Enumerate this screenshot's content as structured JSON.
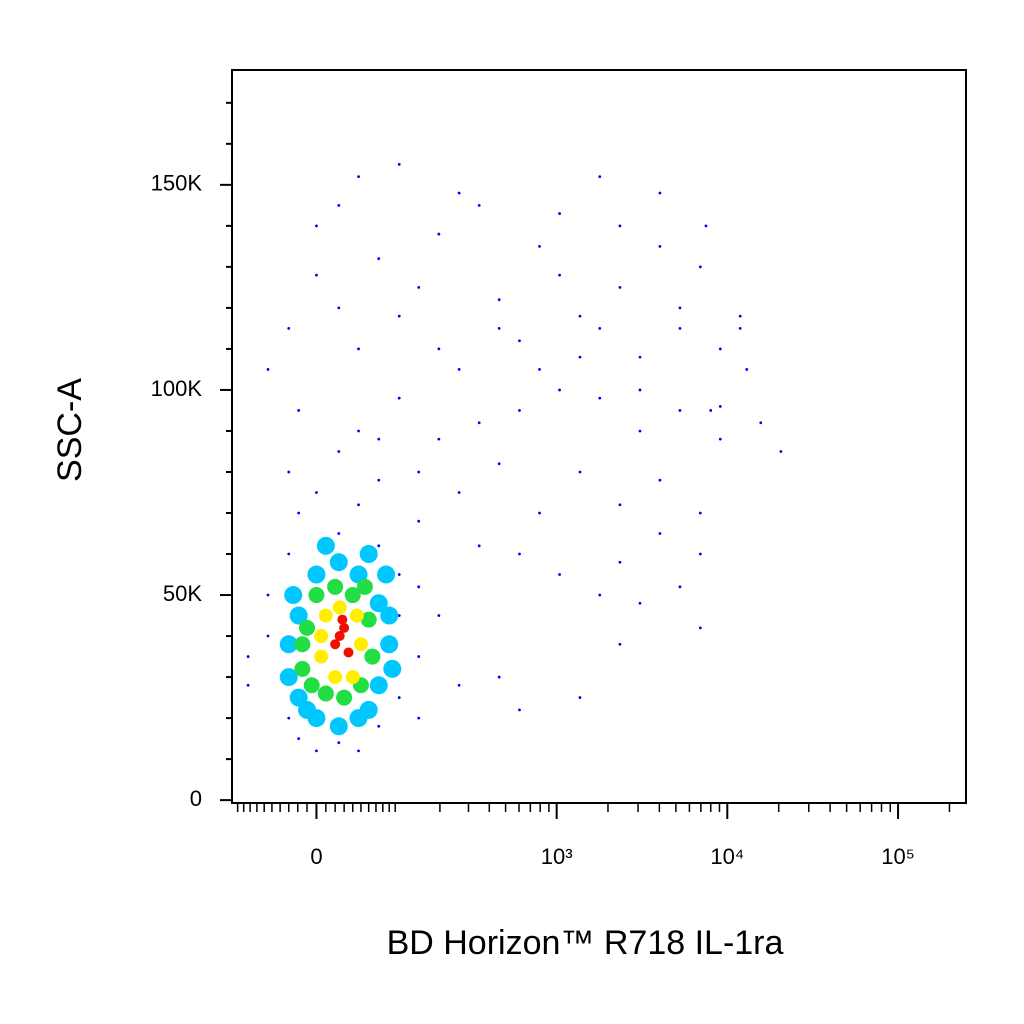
{
  "chart_data": {
    "type": "scatter",
    "x_label": "BD Horizon™ R718 IL-1ra",
    "y_label": "SSC-A",
    "xscale": "biexponential",
    "xlim": [
      -110,
      250000
    ],
    "ylim": [
      -700,
      178000
    ],
    "xticks": [
      0,
      {
        "value": 1000,
        "label": "10³"
      },
      {
        "value": 10000,
        "label": "10⁴"
      },
      {
        "value": 100000,
        "label": "10⁵"
      }
    ],
    "xminorticks": [
      -100,
      -90,
      -80,
      -70,
      -60,
      -50,
      -40,
      -30,
      -20,
      -10,
      10,
      20,
      30,
      40,
      50,
      60,
      70,
      80,
      90,
      100,
      200,
      300,
      400,
      500,
      600,
      700,
      800,
      900,
      2000,
      3000,
      4000,
      5000,
      6000,
      7000,
      8000,
      9000,
      20000,
      30000,
      40000,
      50000,
      60000,
      70000,
      80000,
      90000,
      200000
    ],
    "yticks": [
      0,
      {
        "value": 50000,
        "label": "50K"
      },
      {
        "value": 100000,
        "label": "100K"
      },
      {
        "value": 150000,
        "label": "150K"
      }
    ],
    "yminorticks": [
      10000,
      20000,
      30000,
      40000,
      60000,
      70000,
      80000,
      90000,
      110000,
      120000,
      130000,
      140000,
      160000,
      170000
    ],
    "series": [
      {
        "color": "#0000ff",
        "x": [
          -19,
          0,
          24,
          47,
          74,
          107,
          146,
          197,
          263,
          348,
          458,
          604,
          793,
          1040,
          1370,
          1790,
          2350,
          3080,
          4030,
          5280,
          6950,
          9100,
          11900,
          15700,
          20600,
          47,
          107,
          197,
          348,
          604,
          1040,
          1790,
          3080,
          5280,
          9100,
          13000,
          74,
          146,
          263,
          458,
          793,
          1370,
          2350,
          4030,
          6950,
          146,
          348,
          604,
          1040,
          1790,
          3080,
          5280,
          6950,
          2350,
          1370,
          458,
          604,
          263,
          197,
          146,
          24,
          -30,
          -55,
          0,
          47,
          107,
          263,
          1040,
          2350,
          4030,
          7500,
          11900,
          3080,
          1370,
          458,
          197,
          793,
          1790,
          5280,
          8000,
          9100,
          4030,
          6950,
          2350,
          -55,
          -83,
          -30,
          -19,
          0,
          24,
          47,
          74,
          107,
          146,
          107,
          74,
          24,
          -30,
          -55,
          -19,
          47,
          -83,
          107,
          146,
          0,
          24,
          -30,
          74
        ],
        "values": [
          95000,
          128000,
          120000,
          110000,
          132000,
          118000,
          125000,
          138000,
          105000,
          145000,
          122000,
          112000,
          135000,
          128000,
          118000,
          152000,
          125000,
          108000,
          148000,
          115000,
          130000,
          110000,
          118000,
          92000,
          85000,
          90000,
          98000,
          88000,
          92000,
          95000,
          100000,
          98000,
          90000,
          95000,
          96000,
          105000,
          78000,
          80000,
          75000,
          82000,
          70000,
          80000,
          72000,
          78000,
          70000,
          68000,
          62000,
          60000,
          55000,
          50000,
          48000,
          52000,
          42000,
          38000,
          25000,
          30000,
          22000,
          28000,
          45000,
          52000,
          145000,
          115000,
          105000,
          140000,
          152000,
          155000,
          148000,
          143000,
          140000,
          135000,
          140000,
          115000,
          100000,
          108000,
          115000,
          110000,
          105000,
          115000,
          120000,
          95000,
          88000,
          65000,
          60000,
          58000,
          40000,
          35000,
          20000,
          15000,
          12000,
          14000,
          12000,
          18000,
          25000,
          35000,
          55000,
          62000,
          65000,
          60000,
          50000,
          70000,
          72000,
          28000,
          45000,
          20000,
          75000,
          85000,
          80000,
          88000
        ]
      },
      {
        "color": "#00c8ff",
        "x": [
          -30,
          -19,
          0,
          24,
          47,
          74,
          90,
          74,
          47,
          24,
          0,
          -19,
          -30,
          -25,
          85,
          60,
          10,
          -10,
          60,
          95,
          90
        ],
        "values": [
          30000,
          45000,
          55000,
          58000,
          55000,
          48000,
          38000,
          28000,
          20000,
          18000,
          20000,
          25000,
          38000,
          50000,
          55000,
          60000,
          62000,
          22000,
          22000,
          32000,
          45000
        ]
      },
      {
        "color": "#22dd44",
        "x": [
          -15,
          -10,
          0,
          20,
          40,
          60,
          65,
          50,
          30,
          10,
          -5,
          55,
          -15
        ],
        "values": [
          32000,
          42000,
          50000,
          52000,
          50000,
          44000,
          35000,
          28000,
          25000,
          26000,
          28000,
          52000,
          38000
        ]
      },
      {
        "color": "#ffee00",
        "x": [
          5,
          10,
          25,
          45,
          50,
          40,
          20,
          5
        ],
        "values": [
          35000,
          45000,
          47000,
          45000,
          38000,
          30000,
          30000,
          40000
        ]
      },
      {
        "color": "#ee1100",
        "x": [
          20,
          30,
          35,
          25,
          28
        ],
        "values": [
          38000,
          42000,
          36000,
          40000,
          44000
        ]
      }
    ]
  }
}
